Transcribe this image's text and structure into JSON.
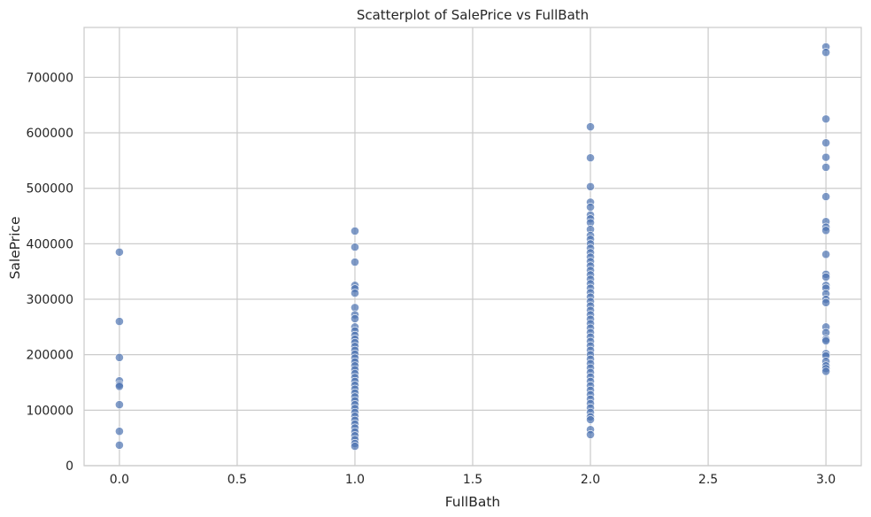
{
  "chart_data": {
    "type": "scatter",
    "title": "Scatterplot of SalePrice vs FullBath",
    "xlabel": "FullBath",
    "ylabel": "SalePrice",
    "xlim": [
      -0.15,
      3.15
    ],
    "ylim": [
      0,
      790000
    ],
    "xticks": [
      0.0,
      0.5,
      1.0,
      1.5,
      2.0,
      2.5,
      3.0
    ],
    "xtick_labels": [
      "0.0",
      "0.5",
      "1.0",
      "1.5",
      "2.0",
      "2.5",
      "3.0"
    ],
    "yticks": [
      0,
      100000,
      200000,
      300000,
      400000,
      500000,
      600000,
      700000
    ],
    "ytick_labels": [
      "0",
      "100000",
      "200000",
      "300000",
      "400000",
      "500000",
      "600000",
      "700000"
    ],
    "grid": true,
    "marker_color": "#4c72b0",
    "marker_alpha": 0.7,
    "edge_color": "#ffffff",
    "points": [
      {
        "x": 0,
        "y": 385000
      },
      {
        "x": 0,
        "y": 260000
      },
      {
        "x": 0,
        "y": 195000
      },
      {
        "x": 0,
        "y": 153000
      },
      {
        "x": 0,
        "y": 146000
      },
      {
        "x": 0,
        "y": 143000
      },
      {
        "x": 0,
        "y": 110000
      },
      {
        "x": 0,
        "y": 62000
      },
      {
        "x": 0,
        "y": 37000
      },
      {
        "x": 1,
        "y": 423000
      },
      {
        "x": 1,
        "y": 394000
      },
      {
        "x": 1,
        "y": 367000
      },
      {
        "x": 1,
        "y": 325000
      },
      {
        "x": 1,
        "y": 319000
      },
      {
        "x": 1,
        "y": 311000
      },
      {
        "x": 1,
        "y": 285000
      },
      {
        "x": 1,
        "y": 272000
      },
      {
        "x": 1,
        "y": 265000
      },
      {
        "x": 1,
        "y": 250000
      },
      {
        "x": 1,
        "y": 243000
      },
      {
        "x": 1,
        "y": 235000
      },
      {
        "x": 1,
        "y": 228000
      },
      {
        "x": 1,
        "y": 222000
      },
      {
        "x": 1,
        "y": 215000
      },
      {
        "x": 1,
        "y": 208000
      },
      {
        "x": 1,
        "y": 201000
      },
      {
        "x": 1,
        "y": 194000
      },
      {
        "x": 1,
        "y": 187000
      },
      {
        "x": 1,
        "y": 180000
      },
      {
        "x": 1,
        "y": 173000
      },
      {
        "x": 1,
        "y": 166000
      },
      {
        "x": 1,
        "y": 159000
      },
      {
        "x": 1,
        "y": 152000
      },
      {
        "x": 1,
        "y": 145000
      },
      {
        "x": 1,
        "y": 138000
      },
      {
        "x": 1,
        "y": 131000
      },
      {
        "x": 1,
        "y": 124000
      },
      {
        "x": 1,
        "y": 117000
      },
      {
        "x": 1,
        "y": 110000
      },
      {
        "x": 1,
        "y": 103000
      },
      {
        "x": 1,
        "y": 96000
      },
      {
        "x": 1,
        "y": 89000
      },
      {
        "x": 1,
        "y": 82000
      },
      {
        "x": 1,
        "y": 75000
      },
      {
        "x": 1,
        "y": 68000
      },
      {
        "x": 1,
        "y": 61000
      },
      {
        "x": 1,
        "y": 54000
      },
      {
        "x": 1,
        "y": 47000
      },
      {
        "x": 1,
        "y": 40000
      },
      {
        "x": 1,
        "y": 35000
      },
      {
        "x": 2,
        "y": 611000
      },
      {
        "x": 2,
        "y": 555000
      },
      {
        "x": 2,
        "y": 503000
      },
      {
        "x": 2,
        "y": 475000
      },
      {
        "x": 2,
        "y": 466000
      },
      {
        "x": 2,
        "y": 452000
      },
      {
        "x": 2,
        "y": 445000
      },
      {
        "x": 2,
        "y": 438000
      },
      {
        "x": 2,
        "y": 426000
      },
      {
        "x": 2,
        "y": 415000
      },
      {
        "x": 2,
        "y": 408000
      },
      {
        "x": 2,
        "y": 400000
      },
      {
        "x": 2,
        "y": 392000
      },
      {
        "x": 2,
        "y": 384000
      },
      {
        "x": 2,
        "y": 376000
      },
      {
        "x": 2,
        "y": 368000
      },
      {
        "x": 2,
        "y": 360000
      },
      {
        "x": 2,
        "y": 352000
      },
      {
        "x": 2,
        "y": 344000
      },
      {
        "x": 2,
        "y": 336000
      },
      {
        "x": 2,
        "y": 328000
      },
      {
        "x": 2,
        "y": 320000
      },
      {
        "x": 2,
        "y": 312000
      },
      {
        "x": 2,
        "y": 304000
      },
      {
        "x": 2,
        "y": 296000
      },
      {
        "x": 2,
        "y": 288000
      },
      {
        "x": 2,
        "y": 280000
      },
      {
        "x": 2,
        "y": 272000
      },
      {
        "x": 2,
        "y": 264000
      },
      {
        "x": 2,
        "y": 256000
      },
      {
        "x": 2,
        "y": 248000
      },
      {
        "x": 2,
        "y": 240000
      },
      {
        "x": 2,
        "y": 232000
      },
      {
        "x": 2,
        "y": 224000
      },
      {
        "x": 2,
        "y": 216000
      },
      {
        "x": 2,
        "y": 208000
      },
      {
        "x": 2,
        "y": 200000
      },
      {
        "x": 2,
        "y": 192000
      },
      {
        "x": 2,
        "y": 184000
      },
      {
        "x": 2,
        "y": 176000
      },
      {
        "x": 2,
        "y": 168000
      },
      {
        "x": 2,
        "y": 160000
      },
      {
        "x": 2,
        "y": 152000
      },
      {
        "x": 2,
        "y": 144000
      },
      {
        "x": 2,
        "y": 136000
      },
      {
        "x": 2,
        "y": 128000
      },
      {
        "x": 2,
        "y": 120000
      },
      {
        "x": 2,
        "y": 112000
      },
      {
        "x": 2,
        "y": 104000
      },
      {
        "x": 2,
        "y": 96000
      },
      {
        "x": 2,
        "y": 88000
      },
      {
        "x": 2,
        "y": 83000
      },
      {
        "x": 2,
        "y": 65000
      },
      {
        "x": 2,
        "y": 56000
      },
      {
        "x": 3,
        "y": 755000
      },
      {
        "x": 3,
        "y": 745000
      },
      {
        "x": 3,
        "y": 625000
      },
      {
        "x": 3,
        "y": 582000
      },
      {
        "x": 3,
        "y": 556000
      },
      {
        "x": 3,
        "y": 538000
      },
      {
        "x": 3,
        "y": 485000
      },
      {
        "x": 3,
        "y": 440000
      },
      {
        "x": 3,
        "y": 430000
      },
      {
        "x": 3,
        "y": 424000
      },
      {
        "x": 3,
        "y": 381000
      },
      {
        "x": 3,
        "y": 345000
      },
      {
        "x": 3,
        "y": 340000
      },
      {
        "x": 3,
        "y": 325000
      },
      {
        "x": 3,
        "y": 320000
      },
      {
        "x": 3,
        "y": 310000
      },
      {
        "x": 3,
        "y": 300000
      },
      {
        "x": 3,
        "y": 294000
      },
      {
        "x": 3,
        "y": 250000
      },
      {
        "x": 3,
        "y": 240000
      },
      {
        "x": 3,
        "y": 228000
      },
      {
        "x": 3,
        "y": 225000
      },
      {
        "x": 3,
        "y": 202000
      },
      {
        "x": 3,
        "y": 198000
      },
      {
        "x": 3,
        "y": 188000
      },
      {
        "x": 3,
        "y": 180000
      },
      {
        "x": 3,
        "y": 175000
      },
      {
        "x": 3,
        "y": 170000
      }
    ]
  }
}
